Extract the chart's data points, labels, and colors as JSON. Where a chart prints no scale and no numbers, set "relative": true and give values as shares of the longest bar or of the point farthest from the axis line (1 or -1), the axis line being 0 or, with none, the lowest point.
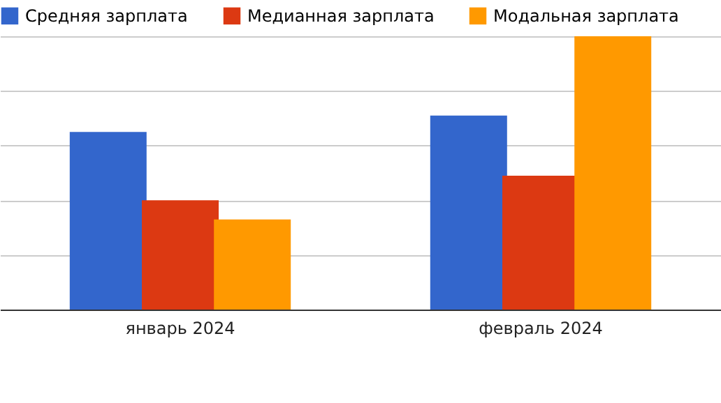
{
  "chart_data": {
    "type": "bar",
    "relative": true,
    "categories": [
      "январь 2024",
      "февраль 2024"
    ],
    "series": [
      {
        "name": "Средняя зарплата",
        "color": "#3366cc",
        "values": [
          0.65,
          0.71
        ]
      },
      {
        "name": "Медианная зарплата",
        "color": "#dc3912",
        "values": [
          0.4,
          0.49
        ]
      },
      {
        "name": "Модальная зарплата",
        "color": "#ff9900",
        "values": [
          0.33,
          1
        ]
      }
    ],
    "grid": "y",
    "legend": "top left"
  }
}
